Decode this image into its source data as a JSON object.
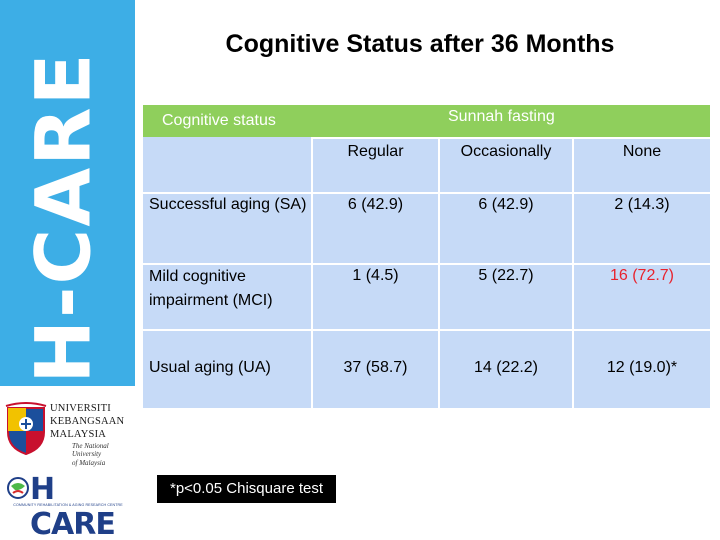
{
  "brand": {
    "vertical_text": "H-CARE",
    "band_color": "#3daee6"
  },
  "ukm_logo": {
    "lines": [
      "UNIVERSITI",
      "KEBANGSAAN",
      "MALAYSIA"
    ],
    "tagline": [
      "The National University",
      "of Malaysia"
    ]
  },
  "hcare_logo": {
    "text": "H CARE",
    "subtitle": "COMMUNITY REHABILITATION & AGING RESEARCH CENTRE"
  },
  "title": "Cognitive Status after 36 Months",
  "table": {
    "header_color": "#8fcf5c",
    "body_color": "#c6daf7",
    "row_header": "Cognitive status",
    "group_header": "Sunnah fasting",
    "columns": [
      "Regular",
      "Occasionally",
      "None"
    ],
    "rows": [
      {
        "label": "Successful aging (SA)",
        "values": [
          "6 (42.9)",
          "6 (42.9)",
          "2 (14.3)"
        ]
      },
      {
        "label": "Mild cognitive impairment (MCI)",
        "values": [
          "1 (4.5)",
          "5 (22.7)",
          "16 (72.7)"
        ]
      },
      {
        "label": "Usual aging (UA)",
        "values": [
          "37 (58.7)",
          "14 (22.2)",
          "12 (19.0)*"
        ]
      }
    ],
    "highlight_color": "#e8232e"
  },
  "footnote": "*p<0.05 Chisquare test"
}
